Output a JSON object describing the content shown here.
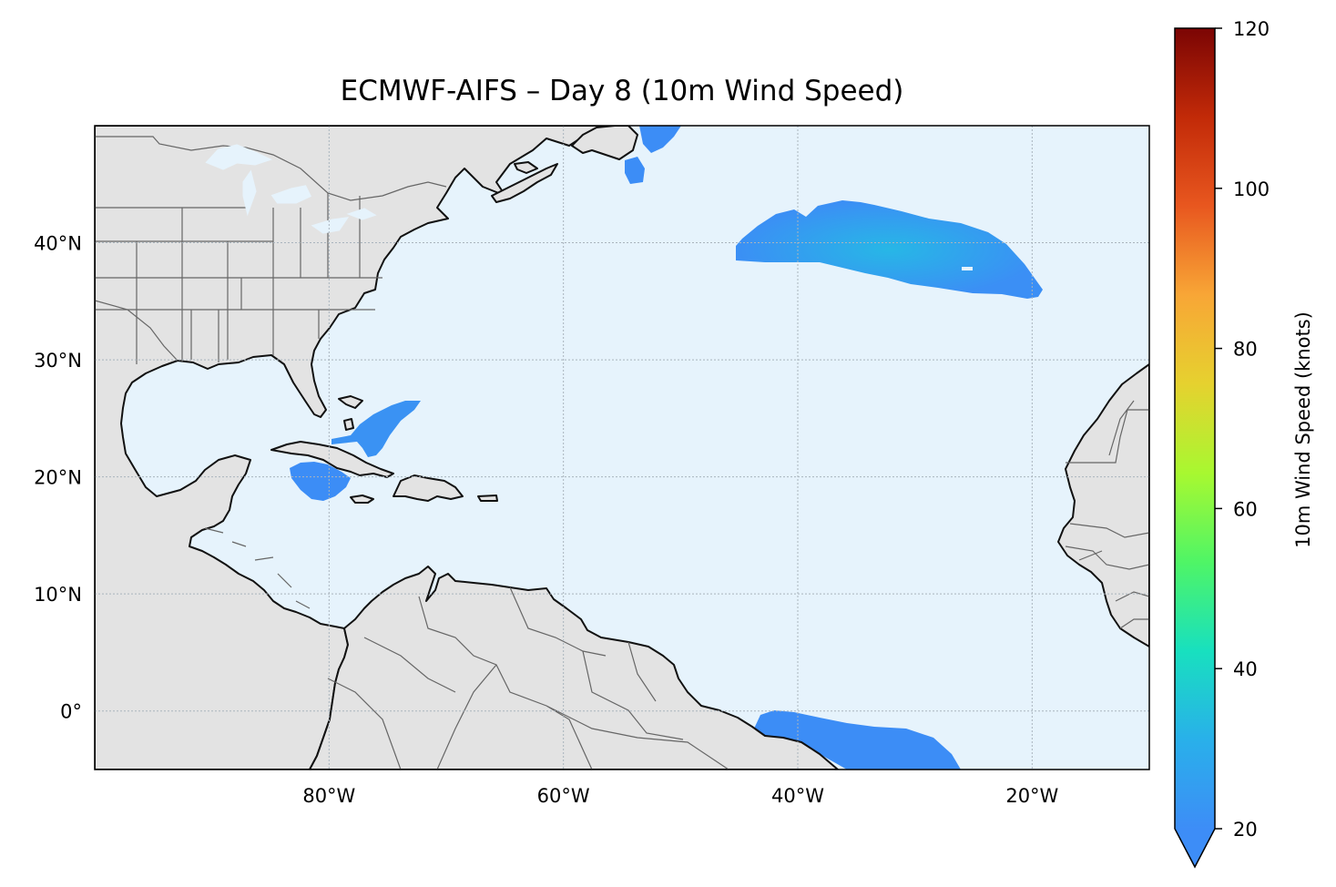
{
  "title": "ECMWF-AIFS – Day 8 (10m Wind Speed)",
  "map": {
    "lon_range": [
      -100,
      -10
    ],
    "lat_range": [
      -5,
      50
    ],
    "lon_ticks": [
      {
        "value": -80,
        "label": "80°W"
      },
      {
        "value": -60,
        "label": "60°W"
      },
      {
        "value": -40,
        "label": "40°W"
      },
      {
        "value": -20,
        "label": "20°W"
      }
    ],
    "lat_ticks": [
      {
        "value": 40,
        "label": "40°N"
      },
      {
        "value": 30,
        "label": "30°N"
      },
      {
        "value": 20,
        "label": "20°N"
      },
      {
        "value": 10,
        "label": "10°N"
      },
      {
        "value": 0,
        "label": "0°"
      }
    ],
    "gridlines": true,
    "colors": {
      "ocean": "#e6f3fc",
      "land": "#e3e3e3",
      "coast": "#111111",
      "borders": "#666666",
      "grid": "#a9b4bd",
      "wind_low": "#3d8df7",
      "wind_mid": "#27b2ea"
    },
    "wind_regions": [
      {
        "name": "North Atlantic band",
        "lon": [
          -45,
          -19
        ],
        "lat": [
          36,
          43
        ],
        "max_knots": 28
      },
      {
        "name": "Bahamas streak",
        "lon": [
          -75,
          -66
        ],
        "lat": [
          23,
          26.5
        ],
        "max_knots": 22
      },
      {
        "name": "Cayman area",
        "lon": [
          -83,
          -78
        ],
        "lat": [
          17.5,
          21
        ],
        "max_knots": 21
      },
      {
        "name": "Equatorial band",
        "lon": [
          -43,
          -26
        ],
        "lat": [
          -5,
          0
        ],
        "max_knots": 22
      },
      {
        "name": "Newfoundland area",
        "lon": [
          -57,
          -51
        ],
        "lat": [
          45,
          50
        ],
        "max_knots": 21
      }
    ]
  },
  "colorbar": {
    "label": "10m Wind Speed (knots)",
    "min": 20,
    "max": 120,
    "extend": "min",
    "ticks": [
      20,
      40,
      60,
      80,
      100,
      120
    ],
    "colormap": [
      "#3d8df7",
      "#29b0ea",
      "#18e0bf",
      "#4ff566",
      "#a8f830",
      "#e6d12f",
      "#f8a636",
      "#e8571f",
      "#c22a08",
      "#7b0504"
    ]
  }
}
